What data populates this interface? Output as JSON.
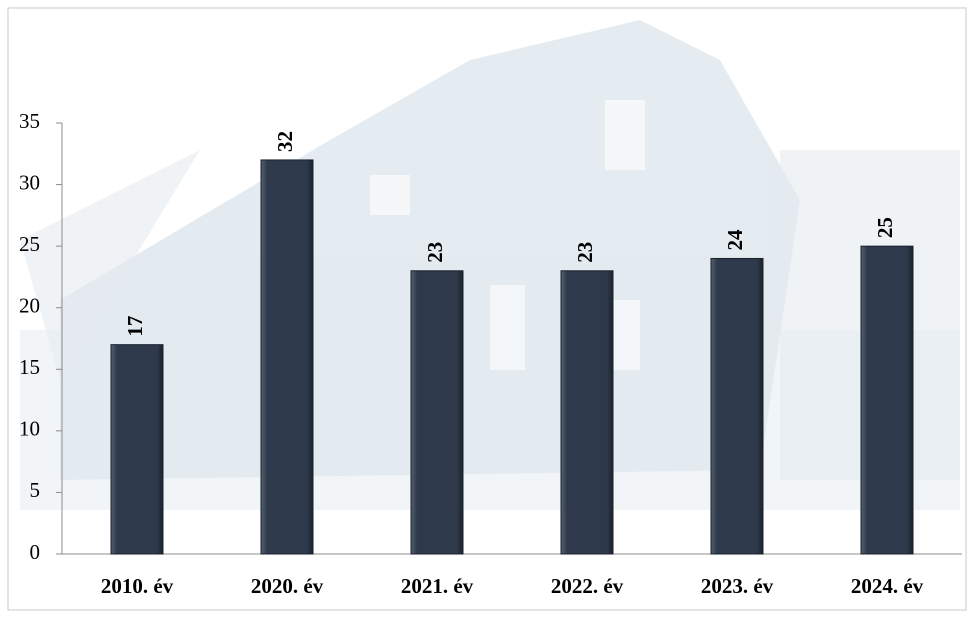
{
  "chart_data": {
    "type": "bar",
    "categories": [
      "2010. év",
      "2020. év",
      "2021. év",
      "2022. év",
      "2023. év",
      "2024. év"
    ],
    "values": [
      17,
      32,
      23,
      23,
      24,
      25
    ],
    "color": "#2e3a4b",
    "ylim": [
      0,
      35
    ],
    "yticks": [
      0,
      5,
      10,
      15,
      20,
      25,
      30,
      35
    ],
    "grid": false
  }
}
